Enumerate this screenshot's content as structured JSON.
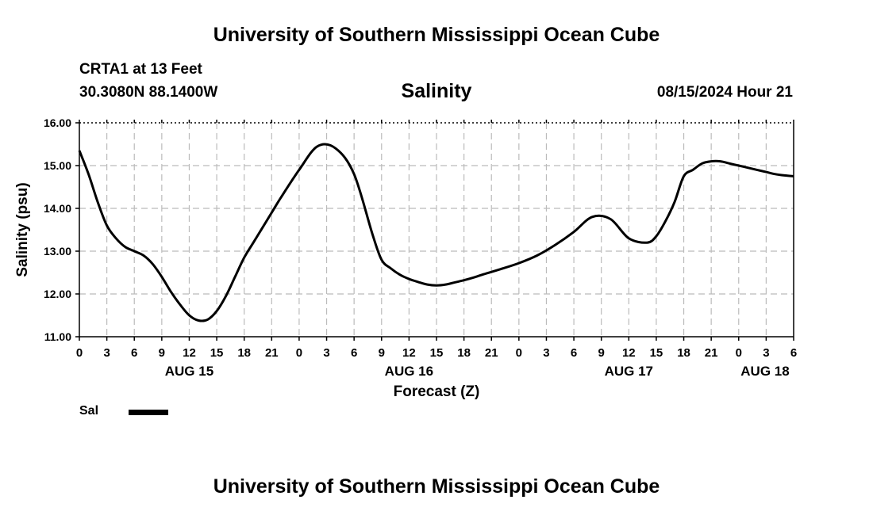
{
  "header": {
    "title": "University of Southern Mississippi Ocean Cube",
    "station": "CRTA1 at 13 Feet",
    "coords": "30.3080N  88.1400W",
    "datetime": "08/15/2024 Hour 21",
    "footer_title": "University of Southern Mississippi Ocean Cube"
  },
  "colors": {
    "line": "#000000",
    "grid": "#bbbbbb",
    "background": "#ffffff"
  },
  "chart_data": {
    "type": "line",
    "title": "Salinity",
    "xlabel": "Forecast (Z)",
    "ylabel": "Salinity (psu)",
    "ylim": [
      11,
      16
    ],
    "xlim": [
      0,
      78
    ],
    "yticks": [
      "11.00",
      "12.00",
      "13.00",
      "14.00",
      "15.00",
      "16.00"
    ],
    "xticks": [
      "0",
      "3",
      "6",
      "9",
      "12",
      "15",
      "18",
      "21",
      "0",
      "3",
      "6",
      "9",
      "12",
      "15",
      "18",
      "21",
      "0",
      "3",
      "6",
      "9",
      "12",
      "15",
      "18",
      "21",
      "0",
      "3",
      "6"
    ],
    "day_labels": [
      {
        "label": "AUG 15",
        "hour": 12
      },
      {
        "label": "AUG 16",
        "hour": 36
      },
      {
        "label": "AUG 17",
        "hour": 60
      },
      {
        "label": "AUG 18",
        "hour": 78
      }
    ],
    "grid": true,
    "series": [
      {
        "name": "Sal",
        "x": [
          0,
          1,
          2,
          3,
          4,
          5,
          6,
          7,
          8,
          9,
          10,
          11,
          12,
          13,
          14,
          15,
          16,
          17,
          18,
          19,
          20,
          21,
          22,
          24,
          26,
          28,
          30,
          32,
          33,
          34,
          35,
          36,
          37,
          38,
          39,
          40,
          41,
          42,
          43,
          44,
          46,
          48,
          50,
          52,
          54,
          56,
          58,
          60,
          62,
          63,
          64,
          65,
          66,
          67,
          68,
          69,
          70,
          71,
          72,
          73,
          74,
          75,
          76,
          77,
          78
        ],
        "values": [
          15.35,
          14.8,
          14.15,
          13.6,
          13.3,
          13.1,
          13.0,
          12.9,
          12.7,
          12.4,
          12.05,
          11.75,
          11.5,
          11.38,
          11.4,
          11.6,
          11.95,
          12.4,
          12.85,
          13.2,
          13.55,
          13.9,
          14.25,
          14.9,
          15.45,
          15.4,
          14.8,
          13.4,
          12.8,
          12.6,
          12.45,
          12.35,
          12.28,
          12.22,
          12.2,
          12.22,
          12.27,
          12.32,
          12.38,
          12.45,
          12.58,
          12.72,
          12.9,
          13.15,
          13.45,
          13.8,
          13.75,
          13.3,
          13.2,
          13.35,
          13.7,
          14.15,
          14.75,
          14.9,
          15.05,
          15.1,
          15.1,
          15.05,
          15.0,
          14.95,
          14.9,
          14.85,
          14.8,
          14.77,
          14.75
        ],
        "visible_max_hour": 78
      }
    ],
    "legend": {
      "label": "Sal",
      "position": "bottom-left"
    }
  }
}
